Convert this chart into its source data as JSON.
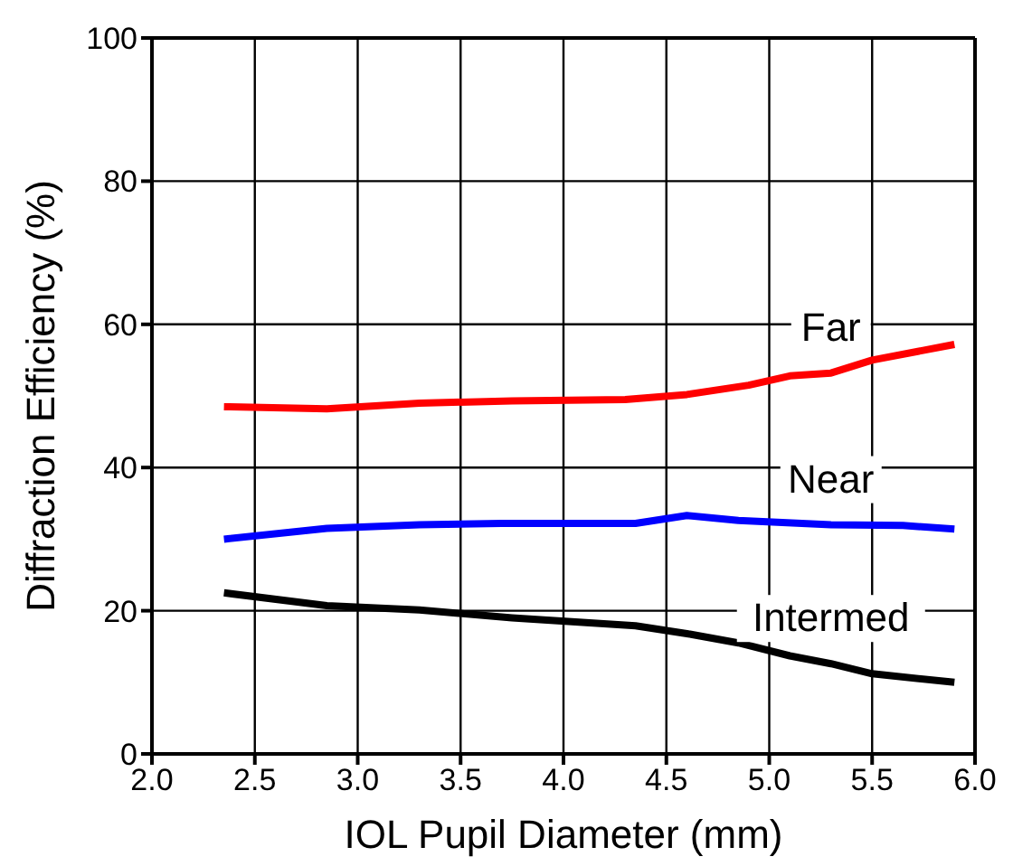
{
  "chart_data": {
    "type": "line",
    "xlabel": "IOL Pupil Diameter (mm)",
    "ylabel": "Diffraction Efficiency (%)",
    "xlim": [
      2.0,
      6.0
    ],
    "xticks": [
      {
        "value": 2,
        "label": "2.0"
      },
      2.5,
      {
        "value": 3,
        "label": "3.0"
      },
      3.5,
      {
        "value": 4,
        "label": "4.0"
      },
      4.5,
      {
        "value": 5,
        "label": "5.0"
      },
      5.5,
      {
        "value": 6,
        "label": "6.0"
      }
    ],
    "ylim": [
      0,
      100
    ],
    "yticks": [
      0,
      20,
      40,
      60,
      80,
      100
    ],
    "grid": true,
    "legend": false,
    "marker": "none",
    "line_style": "solid",
    "series": [
      {
        "name": "Far",
        "color": "#ff0000",
        "x": [
          2.35,
          2.85,
          3.3,
          3.75,
          4.3,
          4.6,
          4.9,
          5.1,
          5.3,
          5.5,
          5.9
        ],
        "values": [
          48.5,
          48.2,
          49,
          49.3,
          49.5,
          50.2,
          51.5,
          52.8,
          53.2,
          55,
          57.2
        ]
      },
      {
        "name": "Near",
        "color": "#0000ff",
        "x": [
          2.35,
          2.85,
          3.3,
          3.7,
          4.35,
          4.6,
          4.85,
          5.3,
          5.65,
          5.9
        ],
        "values": [
          30,
          31.5,
          32,
          32.2,
          32.2,
          33.3,
          32.6,
          32,
          31.9,
          31.4
        ]
      },
      {
        "name": "Intermed",
        "color": "#000000",
        "x": [
          2.35,
          2.85,
          3.3,
          3.75,
          4.35,
          4.6,
          4.85,
          5.1,
          5.3,
          5.5,
          5.9
        ],
        "values": [
          22.5,
          20.7,
          20.1,
          19,
          17.9,
          16.8,
          15.5,
          13.7,
          12.6,
          11.2,
          10
        ]
      }
    ]
  }
}
